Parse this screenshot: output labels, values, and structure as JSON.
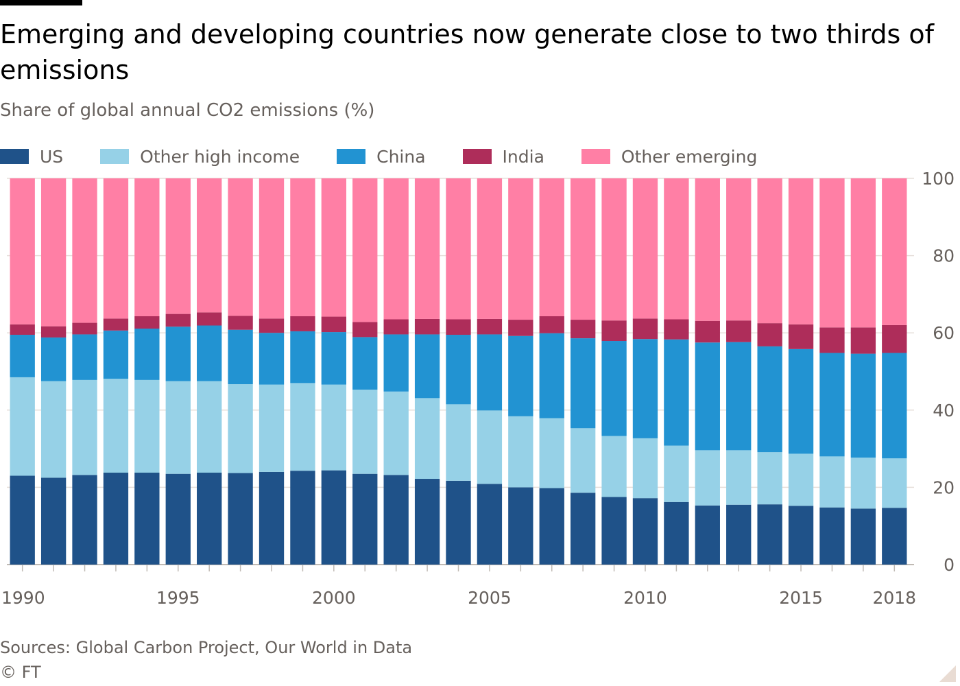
{
  "title": "Emerging and developing countries now generate close to two thirds of emissions",
  "subtitle": "Share of global annual CO2 emissions (%)",
  "source": "Sources: Global Carbon Project, Our World in Data",
  "credit": "© FT",
  "colors": {
    "US": "#1f5289",
    "Other high income": "#96d1e7",
    "China": "#2293d2",
    "India": "#ae2d5a",
    "Other emerging": "#ff7fa5",
    "background": "#ffffff",
    "axis_text": "#66605c"
  },
  "chart_data": {
    "type": "bar",
    "stacked": true,
    "title": "Emerging and developing countries now generate close to two thirds of emissions",
    "subtitle": "Share of global annual CO2 emissions (%)",
    "xlabel": "",
    "ylabel": "",
    "ylim": [
      0,
      100
    ],
    "yticks": [
      0,
      20,
      40,
      60,
      80,
      100
    ],
    "y_axis_side": "right",
    "grid": true,
    "legend_position": "top-left",
    "x": [
      1990,
      1991,
      1992,
      1993,
      1994,
      1995,
      1996,
      1997,
      1998,
      1999,
      2000,
      2001,
      2002,
      2003,
      2004,
      2005,
      2006,
      2007,
      2008,
      2009,
      2010,
      2011,
      2012,
      2013,
      2014,
      2015,
      2016,
      2017,
      2018
    ],
    "xtick_labels": [
      "1990",
      "1995",
      "2000",
      "2005",
      "2010",
      "2015",
      "2018"
    ],
    "series": [
      {
        "name": "US",
        "values": [
          23.0,
          22.5,
          23.2,
          23.8,
          23.8,
          23.5,
          23.8,
          23.7,
          24.0,
          24.3,
          24.4,
          23.5,
          23.2,
          22.2,
          21.7,
          20.9,
          20.0,
          19.8,
          18.6,
          17.5,
          17.2,
          16.2,
          15.3,
          15.5,
          15.6,
          15.2,
          14.8,
          14.5,
          14.7
        ]
      },
      {
        "name": "Other high income",
        "values": [
          25.5,
          25.0,
          24.6,
          24.3,
          24.0,
          24.0,
          23.7,
          23.0,
          22.6,
          22.7,
          22.2,
          21.8,
          21.6,
          20.9,
          19.8,
          19.0,
          18.4,
          18.1,
          16.7,
          15.8,
          15.5,
          14.6,
          14.3,
          14.1,
          13.5,
          13.5,
          13.2,
          13.2,
          12.8
        ]
      },
      {
        "name": "China",
        "values": [
          11.0,
          11.3,
          11.8,
          12.5,
          13.3,
          14.1,
          14.4,
          14.1,
          13.4,
          13.4,
          13.6,
          13.6,
          14.8,
          16.5,
          18.0,
          19.7,
          20.8,
          22.0,
          23.3,
          24.6,
          25.7,
          27.5,
          27.9,
          28.0,
          27.4,
          27.1,
          26.8,
          26.9,
          27.3
        ]
      },
      {
        "name": "India",
        "values": [
          2.7,
          2.9,
          3.0,
          3.1,
          3.2,
          3.3,
          3.4,
          3.6,
          3.7,
          3.9,
          4.0,
          3.9,
          3.9,
          4.0,
          4.0,
          4.0,
          4.2,
          4.4,
          4.8,
          5.3,
          5.3,
          5.2,
          5.6,
          5.6,
          6.0,
          6.4,
          6.6,
          6.8,
          7.2
        ]
      },
      {
        "name": "Other emerging",
        "values": [
          37.8,
          38.3,
          37.4,
          36.3,
          35.7,
          35.1,
          34.7,
          35.6,
          36.3,
          35.7,
          35.8,
          37.2,
          36.5,
          36.4,
          36.5,
          36.4,
          36.6,
          35.7,
          36.6,
          36.8,
          36.3,
          36.5,
          36.9,
          36.8,
          37.5,
          37.8,
          38.6,
          38.6,
          38.0
        ]
      }
    ]
  }
}
